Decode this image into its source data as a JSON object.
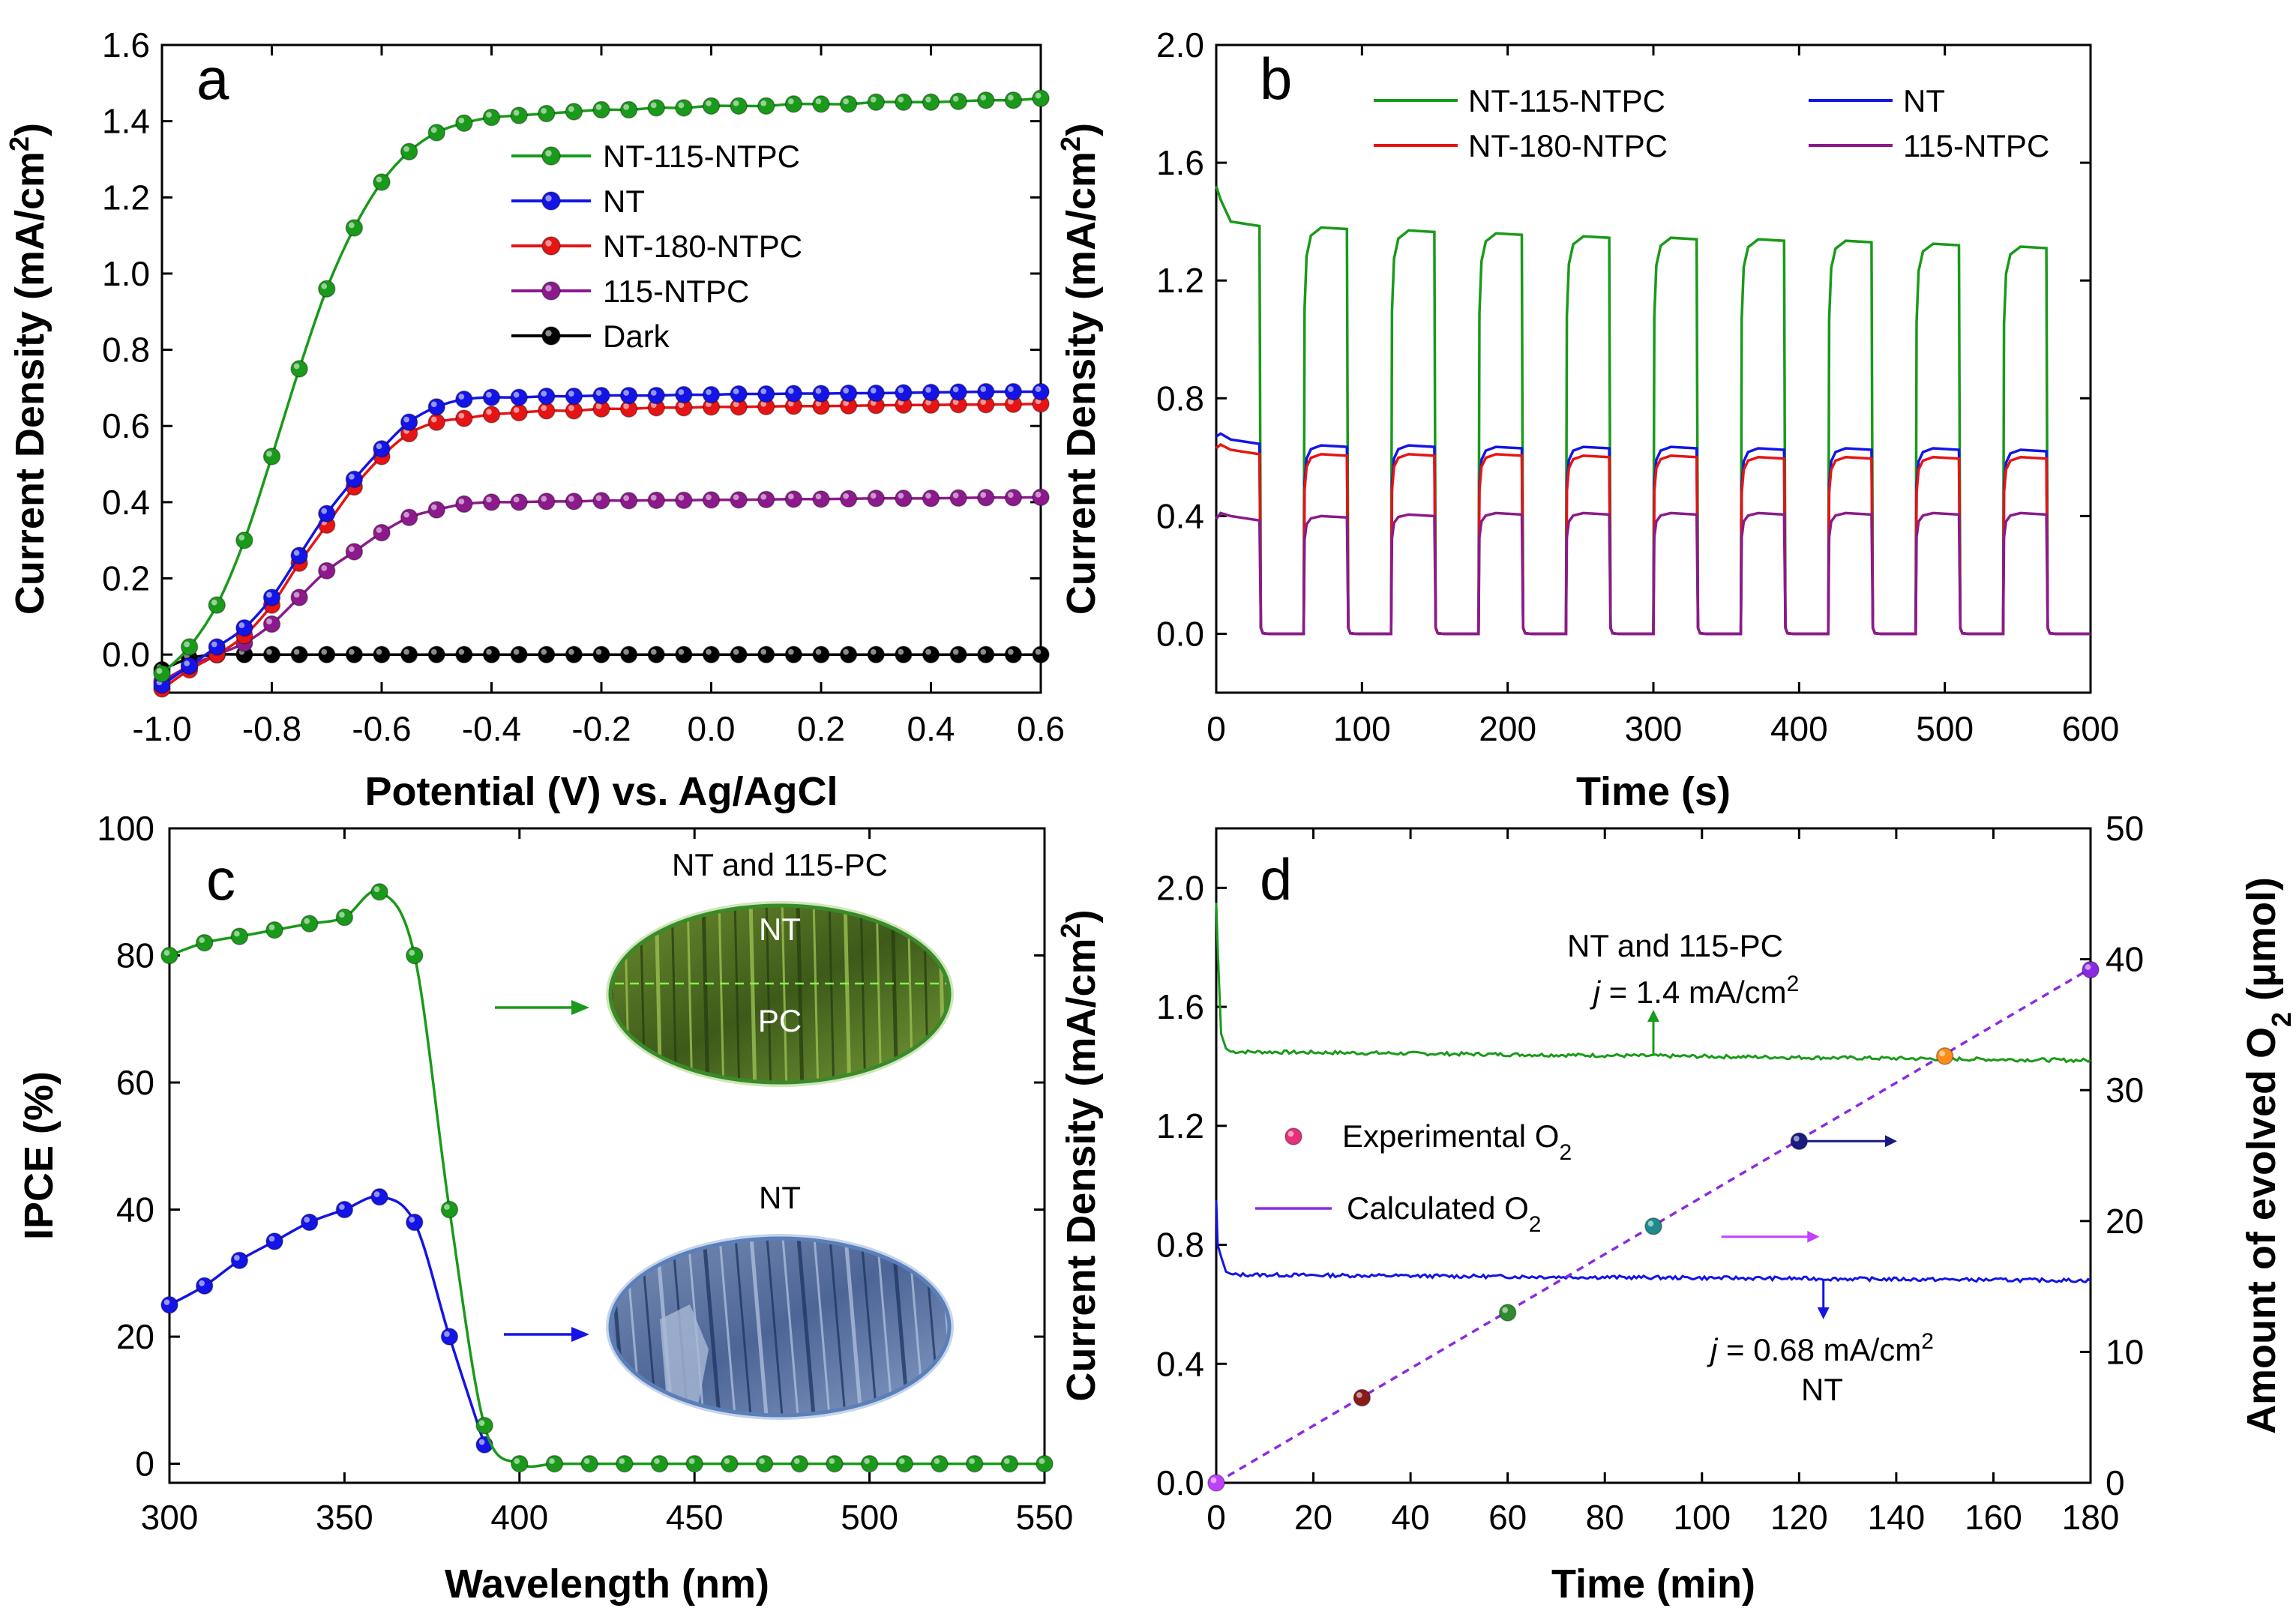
{
  "colors": {
    "green": "#1a9a1a",
    "blue": "#1414e6",
    "red": "#e61414",
    "purple": "#8c1a8c",
    "black": "#000000",
    "dash": "#8a2be2"
  },
  "chart_data": [
    {
      "id": "a",
      "type": "line",
      "panel_label": "a",
      "xlabel": "Potential (V) vs. Ag/AgCl",
      "ylabel": "Current Density (mA/cm²)",
      "xlim": [
        -1.0,
        0.6
      ],
      "ylim": [
        -0.1,
        1.6
      ],
      "xticks": [
        -1.0,
        -0.8,
        -0.6,
        -0.4,
        -0.2,
        0.0,
        0.2,
        0.4,
        0.6
      ],
      "xtick_labels": [
        "-1.0",
        "-0.8",
        "-0.6",
        "-0.4",
        "-0.2",
        "0.0",
        "0.2",
        "0.4",
        "0.6"
      ],
      "yticks": [
        0.0,
        0.2,
        0.4,
        0.6,
        0.8,
        1.0,
        1.2,
        1.4,
        1.6
      ],
      "ytick_labels": [
        "0.0",
        "0.2",
        "0.4",
        "0.6",
        "0.8",
        "1.0",
        "1.2",
        "1.4",
        "1.6"
      ],
      "legend_position": "center-left",
      "series": [
        {
          "name": "NT-115-NTPC",
          "color": "green",
          "markers": true,
          "x": [
            -1.0,
            -0.95,
            -0.9,
            -0.85,
            -0.8,
            -0.75,
            -0.7,
            -0.65,
            -0.6,
            -0.55,
            -0.5,
            -0.45,
            -0.4,
            -0.35,
            -0.3,
            -0.25,
            -0.2,
            -0.15,
            -0.1,
            -0.05,
            0.0,
            0.05,
            0.1,
            0.15,
            0.2,
            0.25,
            0.3,
            0.35,
            0.4,
            0.45,
            0.5,
            0.55,
            0.6
          ],
          "y": [
            -0.05,
            0.02,
            0.13,
            0.3,
            0.52,
            0.75,
            0.96,
            1.12,
            1.24,
            1.32,
            1.37,
            1.395,
            1.41,
            1.415,
            1.42,
            1.425,
            1.43,
            1.43,
            1.435,
            1.435,
            1.44,
            1.44,
            1.44,
            1.445,
            1.445,
            1.445,
            1.45,
            1.45,
            1.45,
            1.452,
            1.455,
            1.455,
            1.46
          ]
        },
        {
          "name": "NT",
          "color": "blue",
          "markers": true,
          "x": [
            -1.0,
            -0.95,
            -0.9,
            -0.85,
            -0.8,
            -0.75,
            -0.7,
            -0.65,
            -0.6,
            -0.55,
            -0.5,
            -0.45,
            -0.4,
            -0.35,
            -0.3,
            -0.25,
            -0.2,
            -0.15,
            -0.1,
            -0.05,
            0.0,
            0.05,
            0.1,
            0.15,
            0.2,
            0.25,
            0.3,
            0.35,
            0.4,
            0.45,
            0.5,
            0.55,
            0.6
          ],
          "y": [
            -0.08,
            -0.03,
            0.02,
            0.07,
            0.15,
            0.26,
            0.37,
            0.46,
            0.54,
            0.61,
            0.65,
            0.67,
            0.675,
            0.675,
            0.678,
            0.678,
            0.68,
            0.68,
            0.68,
            0.682,
            0.682,
            0.684,
            0.684,
            0.685,
            0.685,
            0.686,
            0.686,
            0.687,
            0.688,
            0.689,
            0.69,
            0.69,
            0.69
          ]
        },
        {
          "name": "NT-180-NTPC",
          "color": "red",
          "markers": true,
          "x": [
            -1.0,
            -0.95,
            -0.9,
            -0.85,
            -0.8,
            -0.75,
            -0.7,
            -0.65,
            -0.6,
            -0.55,
            -0.5,
            -0.45,
            -0.4,
            -0.35,
            -0.3,
            -0.25,
            -0.2,
            -0.15,
            -0.1,
            -0.05,
            0.0,
            0.05,
            0.1,
            0.15,
            0.2,
            0.25,
            0.3,
            0.35,
            0.4,
            0.45,
            0.5,
            0.55,
            0.6
          ],
          "y": [
            -0.09,
            -0.04,
            0.0,
            0.05,
            0.13,
            0.24,
            0.34,
            0.44,
            0.52,
            0.58,
            0.61,
            0.62,
            0.63,
            0.635,
            0.64,
            0.64,
            0.645,
            0.645,
            0.648,
            0.648,
            0.65,
            0.65,
            0.651,
            0.652,
            0.652,
            0.653,
            0.654,
            0.655,
            0.655,
            0.656,
            0.656,
            0.657,
            0.658
          ]
        },
        {
          "name": "115-NTPC",
          "color": "purple",
          "markers": true,
          "x": [
            -1.0,
            -0.95,
            -0.9,
            -0.85,
            -0.8,
            -0.75,
            -0.7,
            -0.65,
            -0.6,
            -0.55,
            -0.5,
            -0.45,
            -0.4,
            -0.35,
            -0.3,
            -0.25,
            -0.2,
            -0.15,
            -0.1,
            -0.05,
            0.0,
            0.05,
            0.1,
            0.15,
            0.2,
            0.25,
            0.3,
            0.35,
            0.4,
            0.45,
            0.5,
            0.55,
            0.6
          ],
          "y": [
            -0.07,
            -0.03,
            0.0,
            0.03,
            0.08,
            0.15,
            0.22,
            0.27,
            0.32,
            0.36,
            0.38,
            0.395,
            0.4,
            0.4,
            0.402,
            0.402,
            0.404,
            0.404,
            0.405,
            0.405,
            0.406,
            0.406,
            0.407,
            0.408,
            0.408,
            0.409,
            0.41,
            0.41,
            0.41,
            0.411,
            0.412,
            0.412,
            0.413
          ]
        },
        {
          "name": "Dark",
          "color": "black",
          "markers": true,
          "x": [
            -1.0,
            -0.95,
            -0.9,
            -0.85,
            -0.8,
            -0.75,
            -0.7,
            -0.65,
            -0.6,
            -0.55,
            -0.5,
            -0.45,
            -0.4,
            -0.35,
            -0.3,
            -0.25,
            -0.2,
            -0.15,
            -0.1,
            -0.05,
            0.0,
            0.05,
            0.1,
            0.15,
            0.2,
            0.25,
            0.3,
            0.35,
            0.4,
            0.45,
            0.5,
            0.55,
            0.6
          ],
          "y": [
            -0.04,
            -0.01,
            0.0,
            0.0,
            0.0,
            0.0,
            0.0,
            0.0,
            0.0,
            0.0,
            0.0,
            0.0,
            0.0,
            0.0,
            0.0,
            0.0,
            0.0,
            0.0,
            0.0,
            0.0,
            0.0,
            0.0,
            0.0,
            0.0,
            0.0,
            0.0,
            0.0,
            0.0,
            0.0,
            0.0,
            0.0,
            0.0,
            0.0
          ]
        }
      ]
    },
    {
      "id": "b",
      "type": "line",
      "panel_label": "b",
      "xlabel": "Time (s)",
      "ylabel": "Current Density (mA/cm²)",
      "xlim": [
        0,
        600
      ],
      "ylim": [
        -0.2,
        2.0
      ],
      "xticks": [
        0,
        100,
        200,
        300,
        400,
        500,
        600
      ],
      "xtick_labels": [
        "0",
        "100",
        "200",
        "300",
        "400",
        "500",
        "600"
      ],
      "yticks": [
        0.0,
        0.4,
        0.8,
        1.2,
        1.6,
        2.0
      ],
      "ytick_labels": [
        "0.0",
        "0.4",
        "0.8",
        "1.2",
        "1.6",
        "2.0"
      ],
      "legend_position": "top",
      "light_cycle": {
        "period_s": 60,
        "on_s": 30,
        "first_on_s": 0
      },
      "series": [
        {
          "name": "NT-115-NTPC",
          "color": "green",
          "start": 1.52,
          "on_levels": [
            1.39,
            1.38,
            1.37,
            1.36,
            1.35,
            1.345,
            1.34,
            1.335,
            1.325,
            1.315
          ]
        },
        {
          "name": "NT",
          "color": "blue",
          "start": 0.67,
          "on_levels": [
            0.65,
            0.64,
            0.64,
            0.635,
            0.635,
            0.635,
            0.63,
            0.63,
            0.63,
            0.625
          ]
        },
        {
          "name": "NT-180-NTPC",
          "color": "red",
          "start": 0.63,
          "on_levels": [
            0.615,
            0.61,
            0.61,
            0.61,
            0.605,
            0.605,
            0.6,
            0.6,
            0.6,
            0.6
          ]
        },
        {
          "name": "115-NTPC",
          "color": "purple",
          "start": 0.39,
          "on_levels": [
            0.39,
            0.4,
            0.405,
            0.41,
            0.41,
            0.41,
            0.41,
            0.41,
            0.41,
            0.41
          ]
        }
      ]
    },
    {
      "id": "c",
      "type": "line",
      "panel_label": "c",
      "xlabel": "Wavelength (nm)",
      "ylabel": "IPCE (%)",
      "xlim": [
        300,
        550
      ],
      "ylim": [
        -3,
        100
      ],
      "xticks": [
        300,
        350,
        400,
        450,
        500,
        550
      ],
      "xtick_labels": [
        "300",
        "350",
        "400",
        "450",
        "500",
        "550"
      ],
      "yticks": [
        0,
        20,
        40,
        60,
        80,
        100
      ],
      "ytick_labels": [
        "0",
        "20",
        "40",
        "60",
        "80",
        "100"
      ],
      "series": [
        {
          "name": "NT and 115-PC",
          "color": "green",
          "x": [
            300,
            310,
            320,
            330,
            340,
            350,
            360,
            370,
            380,
            390,
            400,
            410,
            420,
            430,
            440,
            450,
            460,
            470,
            480,
            490,
            500,
            510,
            520,
            530,
            540,
            550
          ],
          "y": [
            80,
            82,
            83,
            84,
            85,
            86,
            90,
            80,
            40,
            6,
            0,
            0,
            0,
            0,
            0,
            0,
            0,
            0,
            0,
            0,
            0,
            0,
            0,
            0,
            0,
            0
          ]
        },
        {
          "name": "NT",
          "color": "blue",
          "x": [
            300,
            310,
            320,
            330,
            340,
            350,
            360,
            370,
            380,
            390
          ],
          "y": [
            25,
            28,
            32,
            35,
            38,
            40,
            42,
            38,
            20,
            3
          ]
        }
      ],
      "insets": [
        {
          "title": "NT and 115-PC",
          "labels": [
            "NT",
            "PC"
          ],
          "color": "green"
        },
        {
          "title": "NT",
          "labels": [],
          "color": "blue"
        }
      ]
    },
    {
      "id": "d",
      "type": "line",
      "panel_label": "d",
      "xlabel": "Time (min)",
      "ylabel": "Current Density (mA/cm²)",
      "ylabel_right": "Amount of evolved O₂ (μmol)",
      "xlim": [
        0,
        180
      ],
      "ylim": [
        0.0,
        2.2
      ],
      "ylim_right": [
        0,
        50
      ],
      "xticks": [
        0,
        20,
        40,
        60,
        80,
        100,
        120,
        140,
        160,
        180
      ],
      "xtick_labels": [
        "0",
        "20",
        "40",
        "60",
        "80",
        "100",
        "120",
        "140",
        "160",
        "180"
      ],
      "yticks": [
        0.0,
        0.4,
        0.8,
        1.2,
        1.6,
        2.0
      ],
      "ytick_labels": [
        "0.0",
        "0.4",
        "0.8",
        "1.2",
        "1.6",
        "2.0"
      ],
      "yticks_right": [
        0,
        10,
        20,
        30,
        40,
        50
      ],
      "ytick_labels_right": [
        "0",
        "10",
        "20",
        "30",
        "40",
        "50"
      ],
      "series": [
        {
          "name": "NT and 115-PC current",
          "color": "green",
          "start": 1.95,
          "plateau": 1.45,
          "end": 1.42
        },
        {
          "name": "NT current",
          "color": "blue",
          "start": 0.95,
          "plateau": 0.7,
          "end": 0.68
        },
        {
          "name": "Calculated O₂",
          "color": "dash",
          "x": [
            0,
            180
          ],
          "y_right": [
            0,
            39.3
          ]
        },
        {
          "name": "Experimental O₂",
          "x": [
            0,
            30,
            60,
            90,
            120,
            150,
            180
          ],
          "y_right": [
            0,
            6.5,
            13.0,
            19.6,
            26.1,
            32.6,
            39.2
          ],
          "marker_colors": [
            "#c040ff",
            "#8b1a1a",
            "#2e8b2e",
            "#1e8c8c",
            "#1a1a80",
            "#ff8c1a",
            "#8a2be2"
          ]
        }
      ],
      "legend": [
        {
          "label": "Experimental O",
          "sub": "2",
          "marker_color": "#e8307a"
        },
        {
          "label": "Calculated O",
          "sub": "2",
          "line_color": "#8a2be2"
        }
      ],
      "annotations": [
        {
          "line1": "NT and 115-PC",
          "j_prefix": "j",
          "j_value": " = 1.4 mA/cm",
          "sup": "2"
        },
        {
          "j_prefix": "j",
          "j_value": " = 0.68 mA/cm",
          "sup": "2",
          "line2": "NT"
        }
      ]
    }
  ]
}
